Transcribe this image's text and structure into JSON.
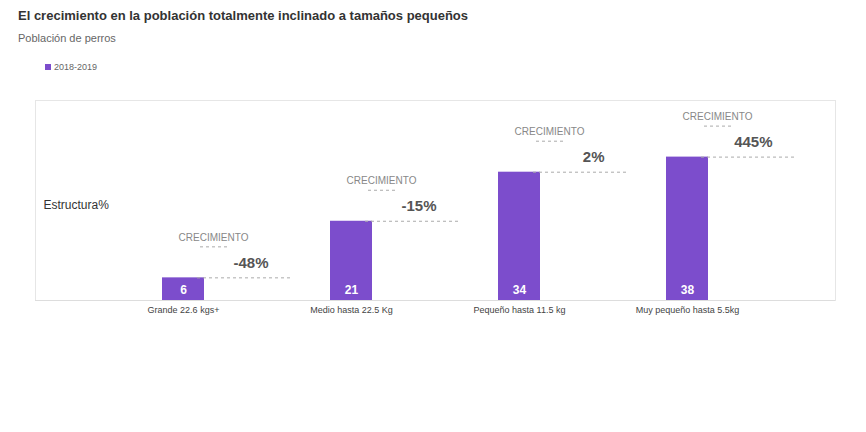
{
  "chart_data": {
    "type": "bar",
    "title": "El crecimiento en la población totalmente inclinado a tamaños pequeños",
    "subtitle": "Población de perros",
    "ylabel": "Estructura%",
    "categories": [
      "Grande 22.6 kgs+",
      "Medio hasta 22.5 Kg",
      "Pequeño hasta 11.5 kg",
      "Muy pequeño hasta 5.5kg"
    ],
    "series": [
      {
        "name": "2018-2019",
        "color": "#7c4dcc",
        "values": [
          6,
          21,
          34,
          38
        ]
      }
    ],
    "ylim": [
      0,
      53
    ],
    "yticks": [],
    "legend": "top-left",
    "data_labels": true,
    "tick_labels": "x",
    "growth": {
      "title": "CRECIMIENTO",
      "values": [
        -48,
        -15,
        2,
        445
      ],
      "value_labels": [
        "-48%",
        "-15%",
        "2%",
        "445%"
      ]
    }
  }
}
